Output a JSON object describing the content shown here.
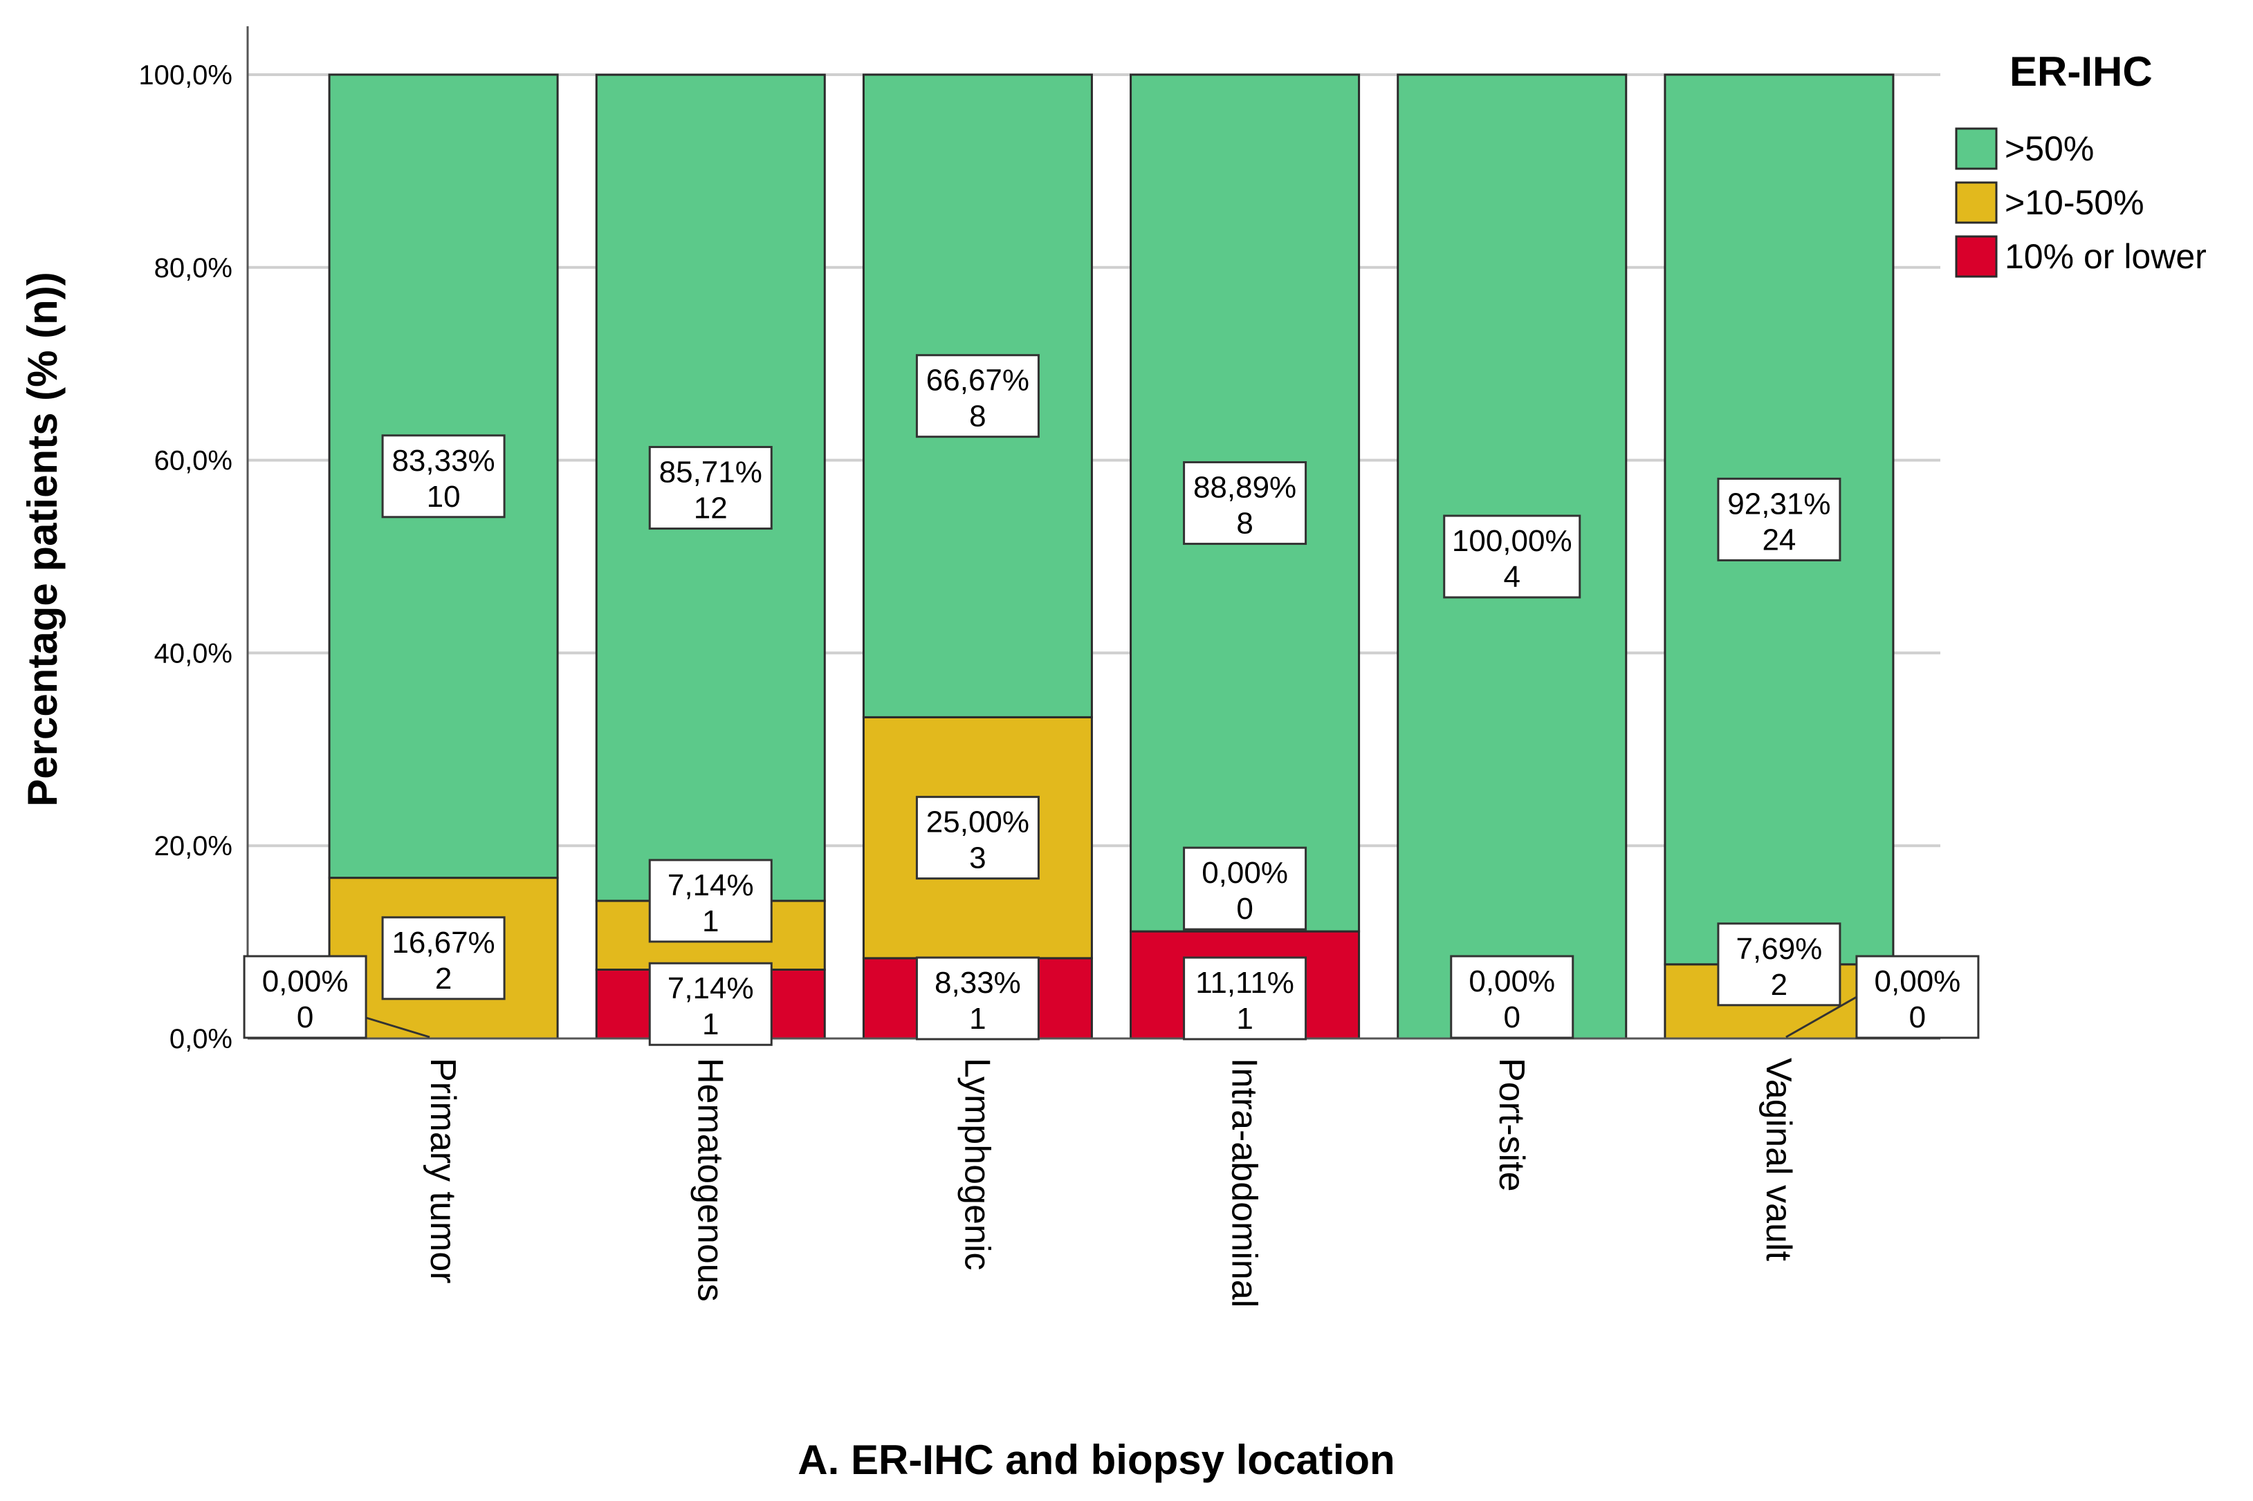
{
  "chart_data": {
    "type": "bar",
    "stacked": true,
    "title": "",
    "xlabel": "A. ER-IHC and biopsy location",
    "ylabel": "Percentage patients (% (n))",
    "ylim": [
      0,
      100
    ],
    "yticks": [
      "0,0%",
      "20,0%",
      "40,0%",
      "60,0%",
      "80,0%",
      "100,0%"
    ],
    "ytick_values": [
      0,
      20,
      40,
      60,
      80,
      100
    ],
    "categories": [
      "Primary tumor",
      "Hematogenous",
      "Lymphogenic",
      "Intra-abdominal",
      "Port-site",
      "Vaginal vault"
    ],
    "legend": {
      "title": "ER-IHC",
      "placement": "top-right",
      "entries": [
        ">50%",
        ">10-50%",
        "10% or lower"
      ]
    },
    "series": [
      {
        "name": "10% or lower",
        "color": "#d9002b",
        "values": [
          0,
          7.14,
          8.33,
          11.11,
          0,
          0
        ],
        "labels": [
          "0,00%",
          "7,14%",
          "8,33%",
          "11,11%",
          "0,00%",
          "0,00%"
        ],
        "counts": [
          "0",
          "1",
          "1",
          "1",
          "0",
          "0"
        ]
      },
      {
        "name": ">10-50%",
        "color": "#e2b91d",
        "values": [
          16.67,
          7.14,
          25.0,
          0,
          0,
          7.69
        ],
        "labels": [
          "16,67%",
          "7,14%",
          "25,00%",
          "0,00%",
          "",
          "7,69%"
        ],
        "counts": [
          "2",
          "1",
          "3",
          "0",
          "",
          "2"
        ]
      },
      {
        "name": ">50%",
        "color": "#5cc98a",
        "values": [
          83.33,
          85.71,
          66.67,
          88.89,
          100.0,
          92.31
        ],
        "labels": [
          "83,33%",
          "85,71%",
          "66,67%",
          "88,89%",
          "100,00%",
          "92,31%"
        ],
        "counts": [
          "10",
          "12",
          "8",
          "8",
          "4",
          "24"
        ]
      }
    ]
  }
}
